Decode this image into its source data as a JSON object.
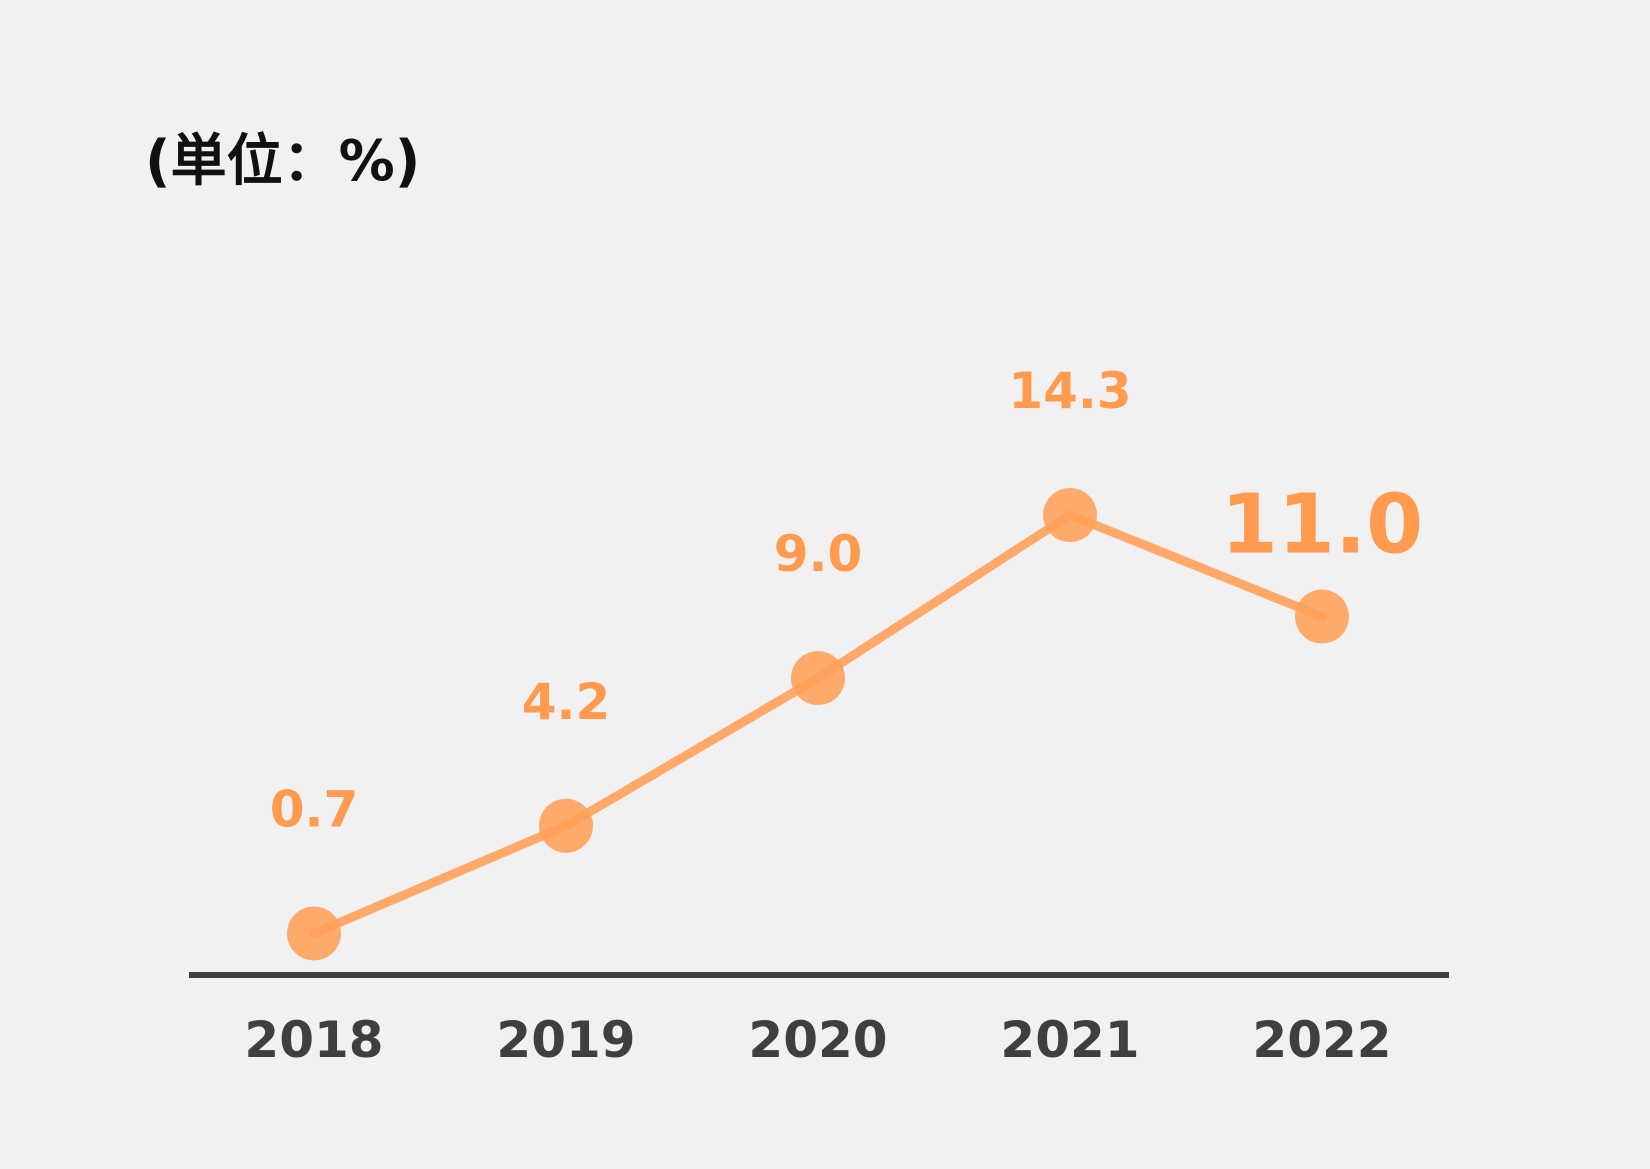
{
  "chart_data": {
    "type": "line",
    "unit_label": "(単位：%)",
    "categories": [
      "2018",
      "2019",
      "2020",
      "2021",
      "2022"
    ],
    "series": [
      {
        "values": [
          0.7,
          4.2,
          9.0,
          14.3,
          11.0
        ],
        "labels": [
          "0.7",
          "4.2",
          "9.0",
          "14.3",
          "11.0"
        ]
      }
    ],
    "highlight_index": 4,
    "xlabel": "",
    "ylabel": "",
    "ylim": [
      0,
      14.3
    ],
    "grid": false,
    "colors": {
      "line": "#ffa15a",
      "marker": "#ff9f58",
      "label": "#ff9a4f",
      "axis": "#3f3f3f"
    }
  }
}
